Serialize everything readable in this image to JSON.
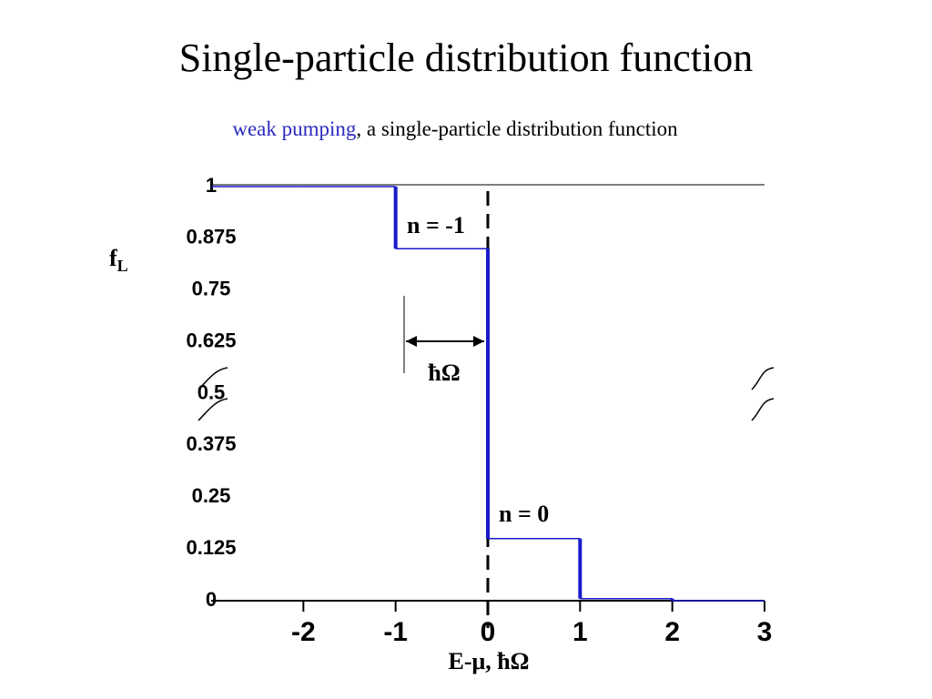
{
  "chart_data": {
    "type": "step",
    "title": "Single-particle distribution function",
    "subtitle_highlight": "weak pumping",
    "subtitle_rest": ", a single-particle distribution function",
    "y_label": "f",
    "y_label_sub": "L",
    "x_label": "E-μ, ħΩ",
    "annotations": [
      "n = -1",
      "n = 0",
      "ħΩ"
    ],
    "x": [
      -3,
      -2,
      -1,
      0,
      1,
      2
    ],
    "values": [
      1,
      1,
      0.85,
      0.15,
      0.005,
      0
    ],
    "color": "#1a1acc",
    "xlim": [
      -3,
      3
    ],
    "ylim": [
      0,
      1
    ],
    "xticks": [
      -2,
      -1,
      0,
      1,
      2,
      3
    ],
    "yticks": [
      0,
      0.125,
      0.25,
      0.375,
      0.5,
      0.625,
      0.75,
      0.875,
      1
    ],
    "grid": false
  }
}
